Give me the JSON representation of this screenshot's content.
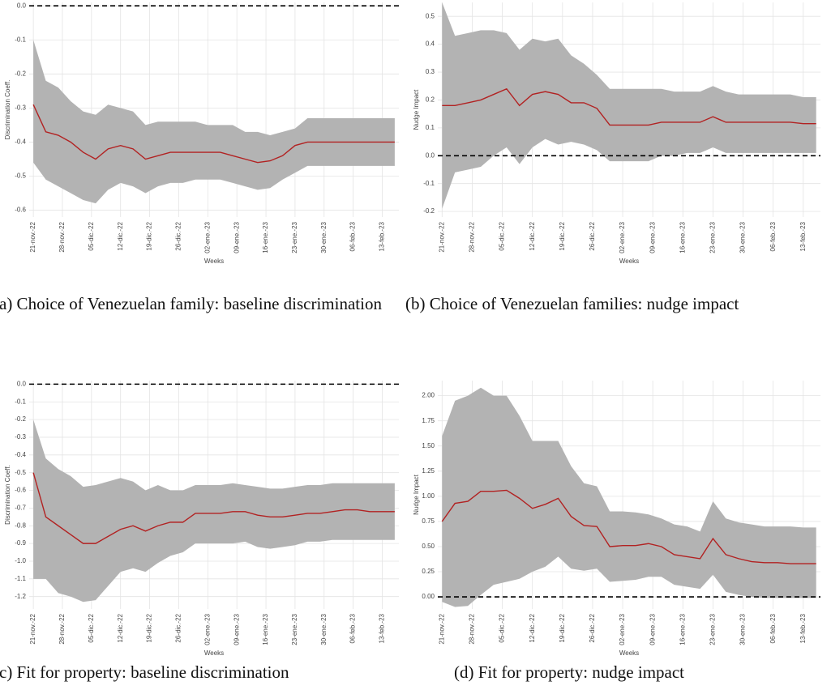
{
  "chart_data": [
    {
      "type": "line",
      "caption": "(a) Choice of Venezuelan family: baseline discrimination",
      "y_label": "Discrimination Coeff.",
      "x_label": "Weeks",
      "color": "#b22222",
      "band_color": "#b3b3b3",
      "hline": 0,
      "grid": true,
      "xlim": [
        "20-nov.-22",
        "17-feb.-23"
      ],
      "ylim": [
        -0.62,
        0.01
      ],
      "yticks": [
        {
          "value": 0,
          "label": "0.0"
        },
        -0.1,
        -0.2,
        -0.3,
        -0.4,
        -0.5,
        -0.6
      ],
      "xticks": [
        "21-nov.-22",
        "28-nov.-22",
        "05-dic.-22",
        "12-dic.-22",
        "19-dic.-22",
        "26-dic.-22",
        "02-ene.-23",
        "09-ene.-23",
        "16-ene.-23",
        "23-ene.-23",
        "30-ene.-23",
        "06-feb.-23",
        "13-feb.-23"
      ],
      "x": [
        "21-nov.-22",
        "24-nov.-22",
        "27-nov.-22",
        "30-nov.-22",
        "03-dic.-22",
        "06-dic.-22",
        "09-dic.-22",
        "12-dic.-22",
        "15-dic.-22",
        "18-dic.-22",
        "21-dic.-22",
        "24-dic.-22",
        "27-dic.-22",
        "30-dic.-22",
        "02-ene.-23",
        "05-ene.-23",
        "08-ene.-23",
        "11-ene.-23",
        "14-ene.-23",
        "17-ene.-23",
        "20-ene.-23",
        "23-ene.-23",
        "26-ene.-23",
        "29-ene.-23",
        "01-feb.-23",
        "04-feb.-23",
        "07-feb.-23",
        "10-feb.-23",
        "13-feb.-23",
        "16-feb.-23"
      ],
      "values": [
        -0.29,
        -0.37,
        -0.38,
        -0.4,
        -0.43,
        -0.45,
        -0.42,
        -0.41,
        -0.42,
        -0.45,
        -0.44,
        -0.43,
        -0.43,
        -0.43,
        -0.43,
        -0.43,
        -0.44,
        -0.45,
        -0.46,
        -0.455,
        -0.44,
        -0.41,
        -0.4,
        -0.4,
        -0.4,
        -0.4,
        -0.4,
        -0.4,
        -0.4,
        -0.4
      ],
      "upper": [
        -0.1,
        -0.22,
        -0.24,
        -0.28,
        -0.31,
        -0.32,
        -0.29,
        -0.3,
        -0.31,
        -0.35,
        -0.34,
        -0.34,
        -0.34,
        -0.34,
        -0.35,
        -0.35,
        -0.35,
        -0.37,
        -0.37,
        -0.38,
        -0.37,
        -0.36,
        -0.33,
        -0.33,
        -0.33,
        -0.33,
        -0.33,
        -0.33,
        -0.33,
        -0.33
      ],
      "lower": [
        -0.46,
        -0.51,
        -0.53,
        -0.55,
        -0.57,
        -0.58,
        -0.54,
        -0.52,
        -0.53,
        -0.55,
        -0.53,
        -0.52,
        -0.52,
        -0.51,
        -0.51,
        -0.51,
        -0.52,
        -0.53,
        -0.54,
        -0.535,
        -0.51,
        -0.49,
        -0.47,
        -0.47,
        -0.47,
        -0.47,
        -0.47,
        -0.47,
        -0.47,
        -0.47
      ]
    },
    {
      "type": "line",
      "caption": "(b) Choice of Venezuelan families: nudge impact",
      "y_label": "Nudge Impact",
      "x_label": "Weeks",
      "color": "#b22222",
      "band_color": "#b3b3b3",
      "hline": 0,
      "grid": true,
      "xlim": [
        "20-nov.-22",
        "17-feb.-23"
      ],
      "ylim": [
        -0.22,
        0.55
      ],
      "yticks": [
        0.5,
        0.4,
        0.3,
        0.2,
        0.1,
        {
          "value": 0,
          "label": "0.0"
        },
        -0.1,
        -0.2
      ],
      "xticks": [
        "21-nov.-22",
        "28-nov.-22",
        "05-dic.-22",
        "12-dic.-22",
        "19-dic.-22",
        "26-dic.-22",
        "02-ene.-23",
        "09-ene.-23",
        "16-ene.-23",
        "23-ene.-23",
        "30-ene.-23",
        "06-feb.-23",
        "13-feb.-23"
      ],
      "x": [
        "21-nov.-22",
        "24-nov.-22",
        "27-nov.-22",
        "30-nov.-22",
        "03-dic.-22",
        "06-dic.-22",
        "09-dic.-22",
        "12-dic.-22",
        "15-dic.-22",
        "18-dic.-22",
        "21-dic.-22",
        "24-dic.-22",
        "27-dic.-22",
        "30-dic.-22",
        "02-ene.-23",
        "05-ene.-23",
        "08-ene.-23",
        "11-ene.-23",
        "14-ene.-23",
        "17-ene.-23",
        "20-ene.-23",
        "23-ene.-23",
        "26-ene.-23",
        "29-ene.-23",
        "01-feb.-23",
        "04-feb.-23",
        "07-feb.-23",
        "10-feb.-23",
        "13-feb.-23",
        "16-feb.-23"
      ],
      "values": [
        0.18,
        0.18,
        0.19,
        0.2,
        0.22,
        0.24,
        0.18,
        0.22,
        0.23,
        0.22,
        0.19,
        0.19,
        0.17,
        0.11,
        0.11,
        0.11,
        0.11,
        0.12,
        0.12,
        0.12,
        0.12,
        0.14,
        0.12,
        0.12,
        0.12,
        0.12,
        0.12,
        0.12,
        0.115,
        0.115
      ],
      "upper": [
        0.55,
        0.43,
        0.44,
        0.45,
        0.45,
        0.44,
        0.38,
        0.42,
        0.41,
        0.42,
        0.36,
        0.33,
        0.29,
        0.24,
        0.24,
        0.24,
        0.24,
        0.24,
        0.23,
        0.23,
        0.23,
        0.25,
        0.23,
        0.22,
        0.22,
        0.22,
        0.22,
        0.22,
        0.21,
        0.21
      ],
      "lower": [
        -0.19,
        -0.06,
        -0.05,
        -0.04,
        0,
        0.03,
        -0.03,
        0.03,
        0.06,
        0.04,
        0.05,
        0.04,
        0.02,
        -0.02,
        -0.02,
        -0.02,
        -0.02,
        0,
        0,
        0.01,
        0.01,
        0.03,
        0.01,
        0.01,
        0.01,
        0.01,
        0.01,
        0.01,
        0.01,
        0.01
      ]
    },
    {
      "type": "line",
      "caption": "(c) Fit for property: baseline discrimination",
      "y_label": "Discrimination Coeff.",
      "x_label": "Weeks",
      "color": "#b22222",
      "band_color": "#b3b3b3",
      "hline": 0,
      "grid": true,
      "xlim": [
        "20-nov.-22",
        "17-feb.-23"
      ],
      "ylim": [
        -1.27,
        0.02
      ],
      "yticks": [
        {
          "value": 0,
          "label": "0.0"
        },
        -0.1,
        -0.2,
        -0.3,
        -0.4,
        -0.5,
        -0.6,
        -0.7,
        -0.8,
        -0.9,
        {
          "value": -1,
          "label": "-1.0"
        },
        -1.1,
        -1.2
      ],
      "xticks": [
        "21-nov.-22",
        "28-nov.-22",
        "05-dic.-22",
        "12-dic.-22",
        "19-dic.-22",
        "26-dic.-22",
        "02-ene.-23",
        "09-ene.-23",
        "16-ene.-23",
        "23-ene.-23",
        "30-ene.-23",
        "06-feb.-23",
        "13-feb.-23"
      ],
      "x": [
        "21-nov.-22",
        "24-nov.-22",
        "27-nov.-22",
        "30-nov.-22",
        "03-dic.-22",
        "06-dic.-22",
        "09-dic.-22",
        "12-dic.-22",
        "15-dic.-22",
        "18-dic.-22",
        "21-dic.-22",
        "24-dic.-22",
        "27-dic.-22",
        "30-dic.-22",
        "02-ene.-23",
        "05-ene.-23",
        "08-ene.-23",
        "11-ene.-23",
        "14-ene.-23",
        "17-ene.-23",
        "20-ene.-23",
        "23-ene.-23",
        "26-ene.-23",
        "29-ene.-23",
        "01-feb.-23",
        "04-feb.-23",
        "07-feb.-23",
        "10-feb.-23",
        "13-feb.-23",
        "16-feb.-23"
      ],
      "values": [
        -0.5,
        -0.75,
        -0.8,
        -0.85,
        -0.9,
        -0.9,
        -0.86,
        -0.82,
        -0.8,
        -0.83,
        -0.8,
        -0.78,
        -0.78,
        -0.73,
        -0.73,
        -0.73,
        -0.72,
        -0.72,
        -0.74,
        -0.75,
        -0.75,
        -0.74,
        -0.73,
        -0.73,
        -0.72,
        -0.71,
        -0.71,
        -0.72,
        -0.72,
        -0.72
      ],
      "upper": [
        -0.2,
        -0.42,
        -0.48,
        -0.52,
        -0.58,
        -0.57,
        -0.55,
        -0.53,
        -0.55,
        -0.6,
        -0.57,
        -0.6,
        -0.6,
        -0.57,
        -0.57,
        -0.57,
        -0.56,
        -0.57,
        -0.58,
        -0.59,
        -0.59,
        -0.58,
        -0.57,
        -0.57,
        -0.56,
        -0.56,
        -0.56,
        -0.56,
        -0.56,
        -0.56
      ],
      "lower": [
        -1.1,
        -1.1,
        -1.18,
        -1.2,
        -1.23,
        -1.22,
        -1.14,
        -1.06,
        -1.04,
        -1.06,
        -1.01,
        -0.97,
        -0.95,
        -0.9,
        -0.9,
        -0.9,
        -0.9,
        -0.89,
        -0.92,
        -0.93,
        -0.92,
        -0.91,
        -0.89,
        -0.89,
        -0.88,
        -0.88,
        -0.88,
        -0.88,
        -0.88,
        -0.88
      ]
    },
    {
      "type": "line",
      "caption": "(d) Fit for property: nudge impact",
      "y_label": "Nudge Impact",
      "x_label": "Weeks",
      "color": "#b22222",
      "band_color": "#b3b3b3",
      "hline": 0,
      "grid": true,
      "xlim": [
        "20-nov.-22",
        "17-feb.-23"
      ],
      "ylim": [
        -0.12,
        2.15
      ],
      "yticks": [
        {
          "value": 2,
          "label": "2.00"
        },
        1.75,
        {
          "value": 1.5,
          "label": "1.50"
        },
        1.25,
        {
          "value": 1,
          "label": "1.00"
        },
        0.75,
        {
          "value": 0.5,
          "label": "0.50"
        },
        0.25,
        {
          "value": 0,
          "label": "0.00"
        }
      ],
      "xticks": [
        "21-nov.-22",
        "28-nov.-22",
        "05-dic.-22",
        "12-dic.-22",
        "19-dic.-22",
        "26-dic.-22",
        "02-ene.-23",
        "09-ene.-23",
        "16-ene.-23",
        "23-ene.-23",
        "30-ene.-23",
        "06-feb.-23",
        "13-feb.-23"
      ],
      "x": [
        "21-nov.-22",
        "24-nov.-22",
        "27-nov.-22",
        "30-nov.-22",
        "03-dic.-22",
        "06-dic.-22",
        "09-dic.-22",
        "12-dic.-22",
        "15-dic.-22",
        "18-dic.-22",
        "21-dic.-22",
        "24-dic.-22",
        "27-dic.-22",
        "30-dic.-22",
        "02-ene.-23",
        "05-ene.-23",
        "08-ene.-23",
        "11-ene.-23",
        "14-ene.-23",
        "17-ene.-23",
        "20-ene.-23",
        "23-ene.-23",
        "26-ene.-23",
        "29-ene.-23",
        "01-feb.-23",
        "04-feb.-23",
        "07-feb.-23",
        "10-feb.-23",
        "13-feb.-23",
        "16-feb.-23"
      ],
      "values": [
        0.75,
        0.93,
        0.95,
        1.05,
        1.05,
        1.06,
        0.98,
        0.88,
        0.92,
        0.98,
        0.8,
        0.71,
        0.7,
        0.5,
        0.51,
        0.51,
        0.53,
        0.5,
        0.42,
        0.4,
        0.38,
        0.58,
        0.42,
        0.38,
        0.35,
        0.34,
        0.34,
        0.33,
        0.33,
        0.33
      ],
      "upper": [
        1.6,
        1.95,
        2.0,
        2.08,
        2.0,
        2.0,
        1.8,
        1.55,
        1.55,
        1.55,
        1.3,
        1.13,
        1.1,
        0.85,
        0.85,
        0.84,
        0.82,
        0.78,
        0.72,
        0.7,
        0.65,
        0.95,
        0.78,
        0.74,
        0.72,
        0.7,
        0.7,
        0.7,
        0.69,
        0.69
      ],
      "lower": [
        -0.05,
        -0.1,
        -0.09,
        0.02,
        0.12,
        0.15,
        0.18,
        0.25,
        0.3,
        0.4,
        0.28,
        0.26,
        0.28,
        0.15,
        0.16,
        0.17,
        0.2,
        0.2,
        0.12,
        0.1,
        0.08,
        0.22,
        0.05,
        0.02,
        0,
        -0.01,
        -0.01,
        -0.01,
        -0.01,
        -0.01
      ]
    }
  ]
}
